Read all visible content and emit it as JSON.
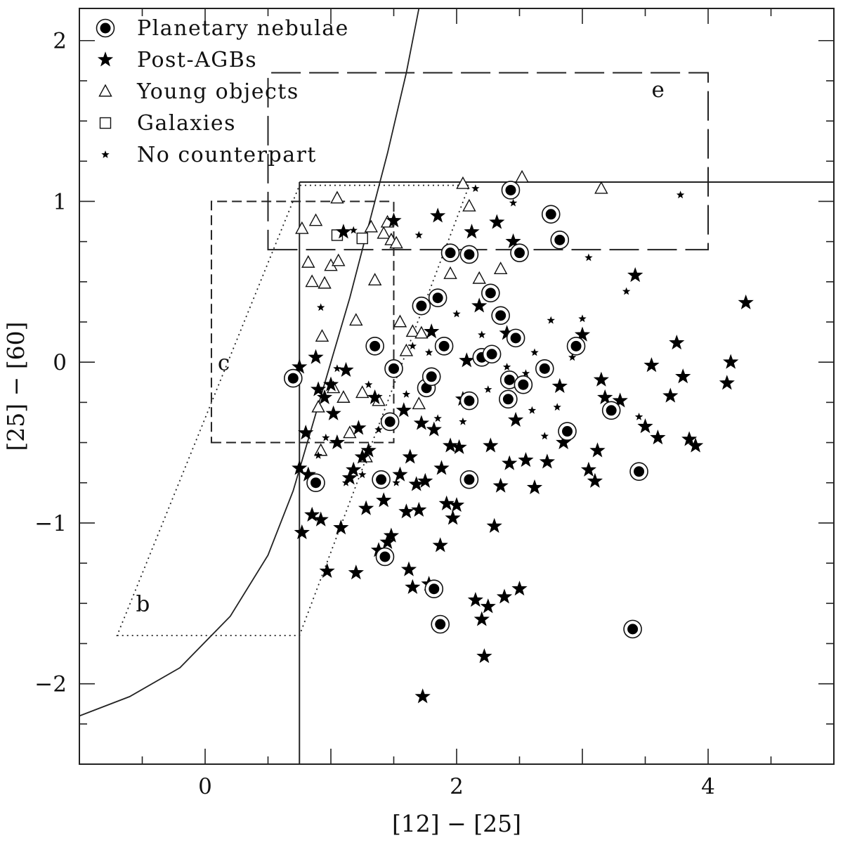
{
  "chart_data": {
    "type": "scatter",
    "title": "",
    "xlabel": "[12] − [25]",
    "ylabel": "[25] − [60]",
    "xlim": [
      -1,
      5
    ],
    "ylim": [
      -2.5,
      2.2
    ],
    "x_ticks": [
      0,
      2,
      4
    ],
    "y_ticks": [
      -2,
      -1,
      0,
      1,
      2
    ],
    "x_tick_labels": [
      "0",
      "2",
      "4"
    ],
    "y_tick_labels": [
      "−2",
      "−1",
      "0",
      "1",
      "2"
    ],
    "x_minor_step": 0.5,
    "y_minor_step": 0.25,
    "legend_position": "top-left",
    "grid": false,
    "regions": [
      {
        "label": "b",
        "style": "dotted",
        "label_at": [
          -0.55,
          -1.55
        ],
        "polygon": [
          [
            -0.7,
            -1.7
          ],
          [
            0.75,
            -1.7
          ],
          [
            2.1,
            1.1
          ],
          [
            0.75,
            1.1
          ]
        ]
      },
      {
        "label": "c",
        "style": "short-dashed",
        "label_at": [
          0.1,
          -0.05
        ],
        "polygon": [
          [
            0.05,
            -0.5
          ],
          [
            1.5,
            -0.5
          ],
          [
            1.5,
            1.0
          ],
          [
            0.05,
            1.0
          ]
        ]
      },
      {
        "label": "e",
        "style": "long-dashed",
        "label_at": [
          3.55,
          1.65
        ],
        "polygon": [
          [
            0.5,
            0.7
          ],
          [
            4.0,
            0.7
          ],
          [
            4.0,
            1.8
          ],
          [
            0.5,
            1.8
          ]
        ]
      }
    ],
    "boundary_lines": {
      "vertical_x": 0.75,
      "horizontal_y": 1.12,
      "curve": [
        [
          -1.0,
          -2.2
        ],
        [
          -0.6,
          -2.08
        ],
        [
          -0.2,
          -1.9
        ],
        [
          0.2,
          -1.58
        ],
        [
          0.5,
          -1.2
        ],
        [
          0.7,
          -0.8
        ],
        [
          0.85,
          -0.4
        ],
        [
          1.0,
          0.0
        ],
        [
          1.15,
          0.4
        ],
        [
          1.3,
          0.85
        ],
        [
          1.45,
          1.3
        ],
        [
          1.6,
          1.8
        ],
        [
          1.7,
          2.2
        ]
      ]
    },
    "series": [
      {
        "name": "Planetary nebulae",
        "marker": "circled-dot",
        "points": [
          [
            0.7,
            -0.1
          ],
          [
            0.88,
            -0.75
          ],
          [
            1.35,
            0.1
          ],
          [
            1.4,
            -0.73
          ],
          [
            1.43,
            -1.21
          ],
          [
            1.47,
            -0.37
          ],
          [
            1.5,
            -0.04
          ],
          [
            1.72,
            0.35
          ],
          [
            1.76,
            -0.16
          ],
          [
            1.8,
            -0.09
          ],
          [
            1.82,
            -1.41
          ],
          [
            1.85,
            0.4
          ],
          [
            1.87,
            -1.63
          ],
          [
            1.9,
            0.1
          ],
          [
            1.95,
            0.68
          ],
          [
            2.1,
            0.67
          ],
          [
            2.1,
            -0.24
          ],
          [
            2.1,
            -0.73
          ],
          [
            2.2,
            0.03
          ],
          [
            2.27,
            0.43
          ],
          [
            2.28,
            0.05
          ],
          [
            2.35,
            0.29
          ],
          [
            2.41,
            -0.23
          ],
          [
            2.42,
            -0.11
          ],
          [
            2.43,
            1.07
          ],
          [
            2.47,
            0.15
          ],
          [
            2.5,
            0.68
          ],
          [
            2.53,
            -0.14
          ],
          [
            2.7,
            -0.04
          ],
          [
            2.75,
            0.92
          ],
          [
            2.82,
            0.76
          ],
          [
            2.88,
            -0.43
          ],
          [
            2.95,
            0.1
          ],
          [
            3.23,
            -0.3
          ],
          [
            3.4,
            -1.66
          ],
          [
            3.45,
            -0.68
          ]
        ]
      },
      {
        "name": "Post-AGBs",
        "marker": "large-star",
        "points": [
          [
            0.75,
            -0.03
          ],
          [
            0.75,
            -0.66
          ],
          [
            0.77,
            -1.06
          ],
          [
            0.8,
            -0.44
          ],
          [
            0.82,
            -0.7
          ],
          [
            0.85,
            -0.95
          ],
          [
            0.88,
            0.03
          ],
          [
            0.9,
            -0.17
          ],
          [
            0.92,
            -0.98
          ],
          [
            0.95,
            -0.22
          ],
          [
            0.97,
            -1.3
          ],
          [
            1.0,
            -0.14
          ],
          [
            1.02,
            -0.32
          ],
          [
            1.05,
            -0.5
          ],
          [
            1.08,
            -1.03
          ],
          [
            1.1,
            0.81
          ],
          [
            1.12,
            -0.05
          ],
          [
            1.15,
            -0.72
          ],
          [
            1.18,
            -0.67
          ],
          [
            1.2,
            -1.31
          ],
          [
            1.22,
            -0.41
          ],
          [
            1.25,
            -0.59
          ],
          [
            1.28,
            -0.91
          ],
          [
            1.3,
            -0.55
          ],
          [
            1.35,
            -0.22
          ],
          [
            1.38,
            -1.17
          ],
          [
            1.42,
            -0.86
          ],
          [
            1.45,
            -1.12
          ],
          [
            1.48,
            -1.08
          ],
          [
            1.5,
            0.88
          ],
          [
            1.55,
            -0.7
          ],
          [
            1.58,
            -0.3
          ],
          [
            1.6,
            -0.93
          ],
          [
            1.62,
            -1.29
          ],
          [
            1.63,
            -0.59
          ],
          [
            1.65,
            -1.4
          ],
          [
            1.68,
            -0.76
          ],
          [
            1.7,
            -0.92
          ],
          [
            1.72,
            -0.38
          ],
          [
            1.73,
            -2.08
          ],
          [
            1.75,
            -0.74
          ],
          [
            1.78,
            -1.38
          ],
          [
            1.8,
            0.19
          ],
          [
            1.82,
            -0.42
          ],
          [
            1.85,
            0.91
          ],
          [
            1.87,
            -1.14
          ],
          [
            1.88,
            -0.66
          ],
          [
            1.92,
            -0.88
          ],
          [
            1.95,
            -0.52
          ],
          [
            1.97,
            -0.97
          ],
          [
            2.0,
            -0.89
          ],
          [
            2.02,
            -0.53
          ],
          [
            2.05,
            -0.23
          ],
          [
            2.08,
            0.01
          ],
          [
            2.12,
            0.81
          ],
          [
            2.15,
            -1.48
          ],
          [
            2.18,
            0.35
          ],
          [
            2.2,
            -1.6
          ],
          [
            2.22,
            -1.83
          ],
          [
            2.25,
            -1.52
          ],
          [
            2.27,
            -0.52
          ],
          [
            2.3,
            -1.02
          ],
          [
            2.32,
            0.87
          ],
          [
            2.35,
            -0.77
          ],
          [
            2.38,
            -1.46
          ],
          [
            2.4,
            0.18
          ],
          [
            2.42,
            -0.63
          ],
          [
            2.45,
            0.75
          ],
          [
            2.47,
            -0.36
          ],
          [
            2.5,
            -1.41
          ],
          [
            2.55,
            -0.61
          ],
          [
            2.62,
            -0.78
          ],
          [
            2.72,
            -0.62
          ],
          [
            2.82,
            -0.15
          ],
          [
            2.85,
            -0.5
          ],
          [
            3.0,
            0.17
          ],
          [
            3.05,
            -0.67
          ],
          [
            3.1,
            -0.74
          ],
          [
            3.12,
            -0.55
          ],
          [
            3.15,
            -0.11
          ],
          [
            3.18,
            -0.22
          ],
          [
            3.3,
            -0.24
          ],
          [
            3.42,
            0.54
          ],
          [
            3.5,
            -0.4
          ],
          [
            3.55,
            -0.02
          ],
          [
            3.6,
            -0.47
          ],
          [
            3.7,
            -0.21
          ],
          [
            3.75,
            0.12
          ],
          [
            3.8,
            -0.09
          ],
          [
            3.85,
            -0.48
          ],
          [
            3.9,
            -0.52
          ],
          [
            4.15,
            -0.13
          ],
          [
            4.18,
            0.0
          ],
          [
            4.3,
            0.37
          ]
        ]
      },
      {
        "name": "Young objects",
        "marker": "open-triangle",
        "points": [
          [
            0.77,
            0.83
          ],
          [
            0.82,
            0.62
          ],
          [
            0.85,
            0.5
          ],
          [
            0.88,
            0.88
          ],
          [
            0.9,
            -0.28
          ],
          [
            0.92,
            -0.55
          ],
          [
            0.93,
            0.16
          ],
          [
            0.95,
            0.49
          ],
          [
            1.0,
            0.6
          ],
          [
            1.02,
            -0.16
          ],
          [
            1.05,
            1.02
          ],
          [
            1.06,
            0.63
          ],
          [
            1.1,
            -0.22
          ],
          [
            1.15,
            -0.44
          ],
          [
            1.2,
            0.26
          ],
          [
            1.25,
            -0.19
          ],
          [
            1.28,
            -0.59
          ],
          [
            1.32,
            0.84
          ],
          [
            1.35,
            0.51
          ],
          [
            1.38,
            -0.24
          ],
          [
            1.42,
            0.8
          ],
          [
            1.45,
            0.87
          ],
          [
            1.48,
            0.76
          ],
          [
            1.52,
            0.74
          ],
          [
            1.55,
            0.25
          ],
          [
            1.6,
            0.07
          ],
          [
            1.65,
            0.19
          ],
          [
            1.7,
            -0.26
          ],
          [
            1.72,
            0.18
          ],
          [
            1.85,
            0.41
          ],
          [
            1.95,
            0.55
          ],
          [
            2.05,
            1.11
          ],
          [
            2.1,
            0.97
          ],
          [
            2.18,
            0.52
          ],
          [
            2.35,
            0.58
          ],
          [
            2.52,
            1.15
          ],
          [
            3.15,
            1.08
          ]
        ]
      },
      {
        "name": "Galaxies",
        "marker": "open-square",
        "points": [
          [
            1.05,
            0.79
          ],
          [
            1.25,
            0.77
          ]
        ]
      },
      {
        "name": "No counterpart",
        "marker": "small-star",
        "points": [
          [
            0.9,
            -0.58
          ],
          [
            0.92,
            0.34
          ],
          [
            0.96,
            -0.47
          ],
          [
            1.05,
            -0.04
          ],
          [
            1.12,
            -0.75
          ],
          [
            1.18,
            0.82
          ],
          [
            1.25,
            -0.7
          ],
          [
            1.3,
            -0.14
          ],
          [
            1.38,
            -0.42
          ],
          [
            1.52,
            -0.75
          ],
          [
            1.6,
            -0.2
          ],
          [
            1.65,
            0.1
          ],
          [
            1.7,
            0.79
          ],
          [
            1.78,
            0.06
          ],
          [
            1.85,
            -0.35
          ],
          [
            2.0,
            0.3
          ],
          [
            2.05,
            -0.37
          ],
          [
            2.15,
            1.08
          ],
          [
            2.2,
            0.17
          ],
          [
            2.25,
            -0.17
          ],
          [
            2.4,
            -0.03
          ],
          [
            2.45,
            0.99
          ],
          [
            2.55,
            -0.07
          ],
          [
            2.6,
            -0.3
          ],
          [
            2.62,
            0.06
          ],
          [
            2.7,
            -0.46
          ],
          [
            2.75,
            0.26
          ],
          [
            2.8,
            -0.28
          ],
          [
            2.92,
            0.03
          ],
          [
            3.0,
            0.27
          ],
          [
            3.05,
            0.65
          ],
          [
            3.35,
            0.44
          ],
          [
            3.45,
            -0.34
          ],
          [
            3.78,
            1.04
          ]
        ]
      }
    ]
  }
}
